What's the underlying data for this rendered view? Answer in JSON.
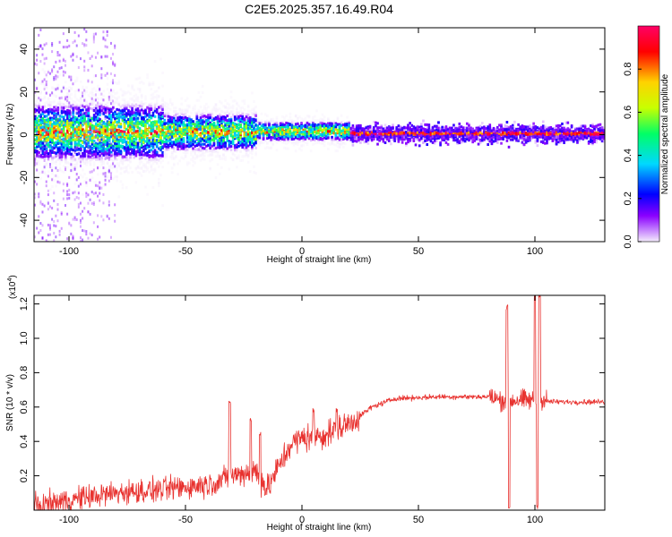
{
  "title": "C2E5.2025.357.16.49.R04",
  "chart_data": [
    {
      "type": "heatmap",
      "name": "spectrogram",
      "xlabel": "Height of straight line (km)",
      "ylabel": "Frequency (Hz)",
      "xlim": [
        -115,
        130
      ],
      "ylim": [
        -50,
        50
      ],
      "xticks": [
        -100,
        -50,
        0,
        50,
        100
      ],
      "xtick_labels": [
        "-100",
        "-50",
        "0",
        "50",
        "100"
      ],
      "yticks": [
        -40,
        -20,
        0,
        20,
        40
      ],
      "ytick_labels": [
        "-40",
        "-20",
        "0",
        "20",
        "40"
      ],
      "colorbar": {
        "label": "Normalized spectral amplitude",
        "range": [
          0,
          1
        ],
        "ticks": [
          0.0,
          0.2,
          0.4,
          0.6,
          0.8
        ],
        "tick_labels": [
          "0.0",
          "0.2",
          "0.4",
          "0.6",
          "0.8"
        ],
        "colors": [
          "#f4ecfc",
          "#8a00ff",
          "#0000ff",
          "#00d8ff",
          "#00ff66",
          "#c8ff00",
          "#ffd200",
          "#ff0000",
          "#ff0066"
        ]
      },
      "ridge_description": "Dominant energy near 0 Hz; broad scatter at low heights narrowing to a thin band above about 20 km"
    },
    {
      "type": "line",
      "name": "snr",
      "xlabel": "Height of straight line (km)",
      "ylabel": "SNR (10 * v/v)",
      "y_scale_label": "(x10",
      "y_scale_exponent": "4",
      "y_scale_close": ")",
      "xlim": [
        -115,
        130
      ],
      "ylim": [
        0,
        1.25
      ],
      "xticks": [
        -100,
        -50,
        0,
        50,
        100
      ],
      "xtick_labels": [
        "-100",
        "-50",
        "0",
        "50",
        "100"
      ],
      "yticks": [
        0.2,
        0.4,
        0.6,
        0.8,
        1.0,
        1.2
      ],
      "ytick_labels": [
        "0.2",
        "0.4",
        "0.6",
        "0.8",
        "1.0",
        "1.2"
      ],
      "color": "#e8322f",
      "trend_x": [
        -115,
        -100,
        -80,
        -60,
        -40,
        -30,
        -20,
        -15,
        -10,
        -5,
        0,
        10,
        20,
        30,
        40,
        60,
        80,
        85,
        95,
        110,
        130
      ],
      "trend_y": [
        0.02,
        0.06,
        0.1,
        0.12,
        0.15,
        0.2,
        0.23,
        0.12,
        0.25,
        0.38,
        0.42,
        0.44,
        0.5,
        0.6,
        0.65,
        0.66,
        0.66,
        0.64,
        0.64,
        0.63,
        0.63
      ],
      "spikes": [
        {
          "x": -31,
          "y": 0.62
        },
        {
          "x": -22,
          "y": 0.52
        },
        {
          "x": -18,
          "y": 0.45
        },
        {
          "x": 5,
          "y": 0.58
        },
        {
          "x": 15,
          "y": 0.58
        },
        {
          "x": 88,
          "y": 1.18
        },
        {
          "x": 89,
          "y": 0.02
        },
        {
          "x": 100,
          "y": 1.25
        },
        {
          "x": 101,
          "y": 0.02
        },
        {
          "x": 102,
          "y": 1.25
        }
      ]
    }
  ]
}
